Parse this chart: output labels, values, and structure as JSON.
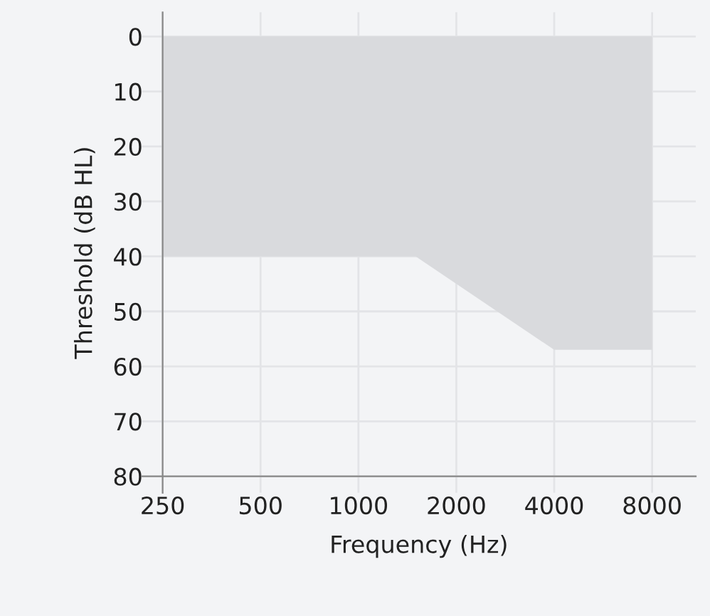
{
  "chart_data": {
    "type": "area",
    "xlabel": "Frequency (Hz)",
    "ylabel": "Threshold (dB HL)",
    "x": [
      250,
      1500,
      4000,
      8000
    ],
    "series": [
      {
        "color": "#d9dadd",
        "values": [
          40,
          40,
          57,
          57
        ]
      }
    ],
    "log": "x",
    "xlim": [
      216,
      10900
    ],
    "ylim": [
      83,
      -4.4
    ],
    "xticks": [
      250,
      500,
      1000,
      2000,
      4000,
      8000
    ],
    "yticks": [
      0,
      10,
      20,
      30,
      40,
      50,
      60,
      70,
      80
    ],
    "grid": true,
    "legend": false
  }
}
